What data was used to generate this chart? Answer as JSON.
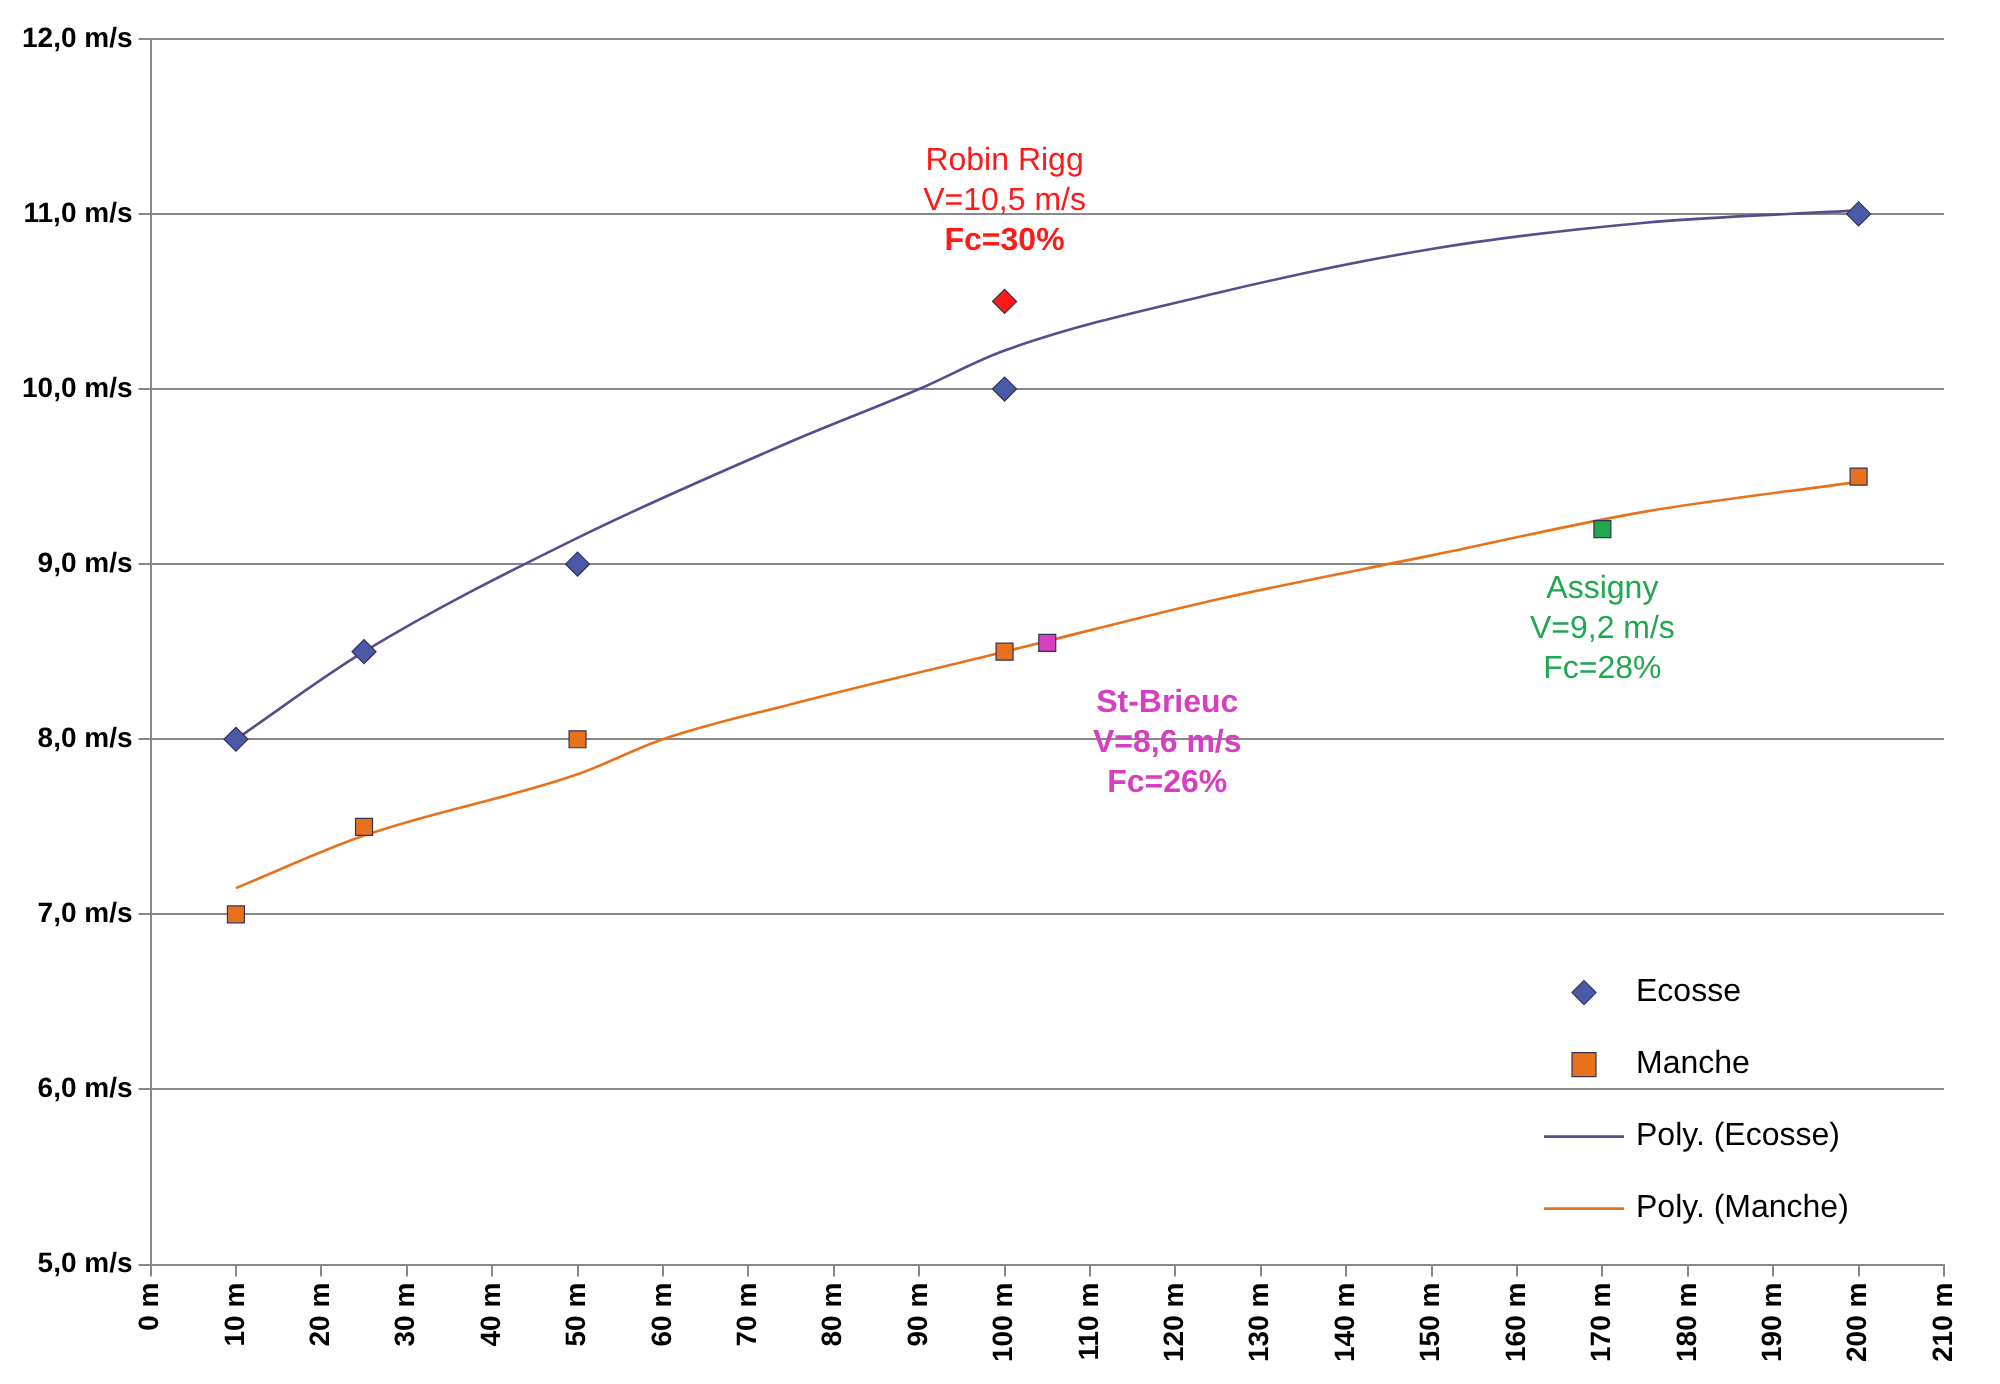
{
  "chart_data": {
    "type": "scatter",
    "xlim": [
      0,
      210
    ],
    "xticks": [
      {
        "value": 0,
        "label": "0 m"
      },
      {
        "value": 10,
        "label": "10 m"
      },
      {
        "value": 20,
        "label": "20 m"
      },
      {
        "value": 30,
        "label": "30 m"
      },
      {
        "value": 40,
        "label": "40 m"
      },
      {
        "value": 50,
        "label": "50 m"
      },
      {
        "value": 60,
        "label": "60 m"
      },
      {
        "value": 70,
        "label": "70 m"
      },
      {
        "value": 80,
        "label": "80 m"
      },
      {
        "value": 90,
        "label": "90 m"
      },
      {
        "value": 100,
        "label": "100 m"
      },
      {
        "value": 110,
        "label": "110 m"
      },
      {
        "value": 120,
        "label": "120 m"
      },
      {
        "value": 130,
        "label": "130 m"
      },
      {
        "value": 140,
        "label": "140 m"
      },
      {
        "value": 150,
        "label": "150 m"
      },
      {
        "value": 160,
        "label": "160 m"
      },
      {
        "value": 170,
        "label": "170 m"
      },
      {
        "value": 180,
        "label": "180 m"
      },
      {
        "value": 190,
        "label": "190 m"
      },
      {
        "value": 200,
        "label": "200 m"
      },
      {
        "value": 210,
        "label": "210 m"
      }
    ],
    "ylim": [
      5,
      12
    ],
    "yticks": [
      {
        "value": 5,
        "label": "5,0 m/s"
      },
      {
        "value": 6,
        "label": "6,0 m/s"
      },
      {
        "value": 7,
        "label": "7,0 m/s"
      },
      {
        "value": 8,
        "label": "8,0 m/s"
      },
      {
        "value": 9,
        "label": "9,0 m/s"
      },
      {
        "value": 10,
        "label": "10,0 m/s"
      },
      {
        "value": 11,
        "label": "11,0 m/s"
      },
      {
        "value": 12,
        "label": "12,0 m/s"
      }
    ],
    "grid": "y",
    "legend": "bottom right",
    "series": [
      {
        "name": "Ecosse",
        "type": "scatter",
        "marker": "diamond",
        "color": "#4a5aa8",
        "x": [
          10,
          25,
          50,
          100,
          100,
          200
        ],
        "values": [
          8,
          8.5,
          9,
          10,
          10.5,
          11
        ],
        "colors": [
          "#4a5aa8",
          "#4a5aa8",
          "#4a5aa8",
          "#4a5aa8",
          "#ff1a1a",
          "#4a5aa8"
        ]
      },
      {
        "name": "Manche",
        "type": "scatter",
        "marker": "square",
        "color": "#e8711c",
        "x": [
          10,
          25,
          50,
          100,
          105,
          170,
          200
        ],
        "values": [
          7,
          7.5,
          8,
          8.5,
          8.55,
          9.2,
          9.5
        ],
        "colors": [
          "#e8711c",
          "#e8711c",
          "#e8711c",
          "#e8711c",
          "#d63fbf",
          "#1fa84f",
          "#e8711c"
        ]
      },
      {
        "name": "Poly. (Ecosse)",
        "type": "line",
        "marker": "none",
        "color": "#5b4a8c",
        "x": [
          10,
          25,
          50,
          75,
          90,
          100,
          125,
          150,
          175,
          200
        ],
        "values": [
          8.0,
          8.5,
          9.15,
          9.7,
          10.0,
          10.22,
          10.55,
          10.8,
          10.95,
          11.02
        ]
      },
      {
        "name": "Poly. (Manche)",
        "type": "line",
        "marker": "none",
        "color": "#e8711c",
        "x": [
          10,
          25,
          50,
          60,
          75,
          100,
          125,
          150,
          175,
          200
        ],
        "values": [
          7.15,
          7.45,
          7.8,
          8.0,
          8.2,
          8.5,
          8.8,
          9.05,
          9.3,
          9.47
        ]
      }
    ],
    "annotations": [
      {
        "text": "Robin Rigg\nV=10,5 m/s\nFc=30%",
        "x": 100,
        "y": 10.5
      },
      {
        "text": "St-Brieuc\nV=8,6 m/s\nFc=26%",
        "x": 105,
        "y": 8.55
      },
      {
        "text": "Assigny\nV=9,2 m/s\nFc=28%",
        "x": 170,
        "y": 9.2
      }
    ]
  }
}
